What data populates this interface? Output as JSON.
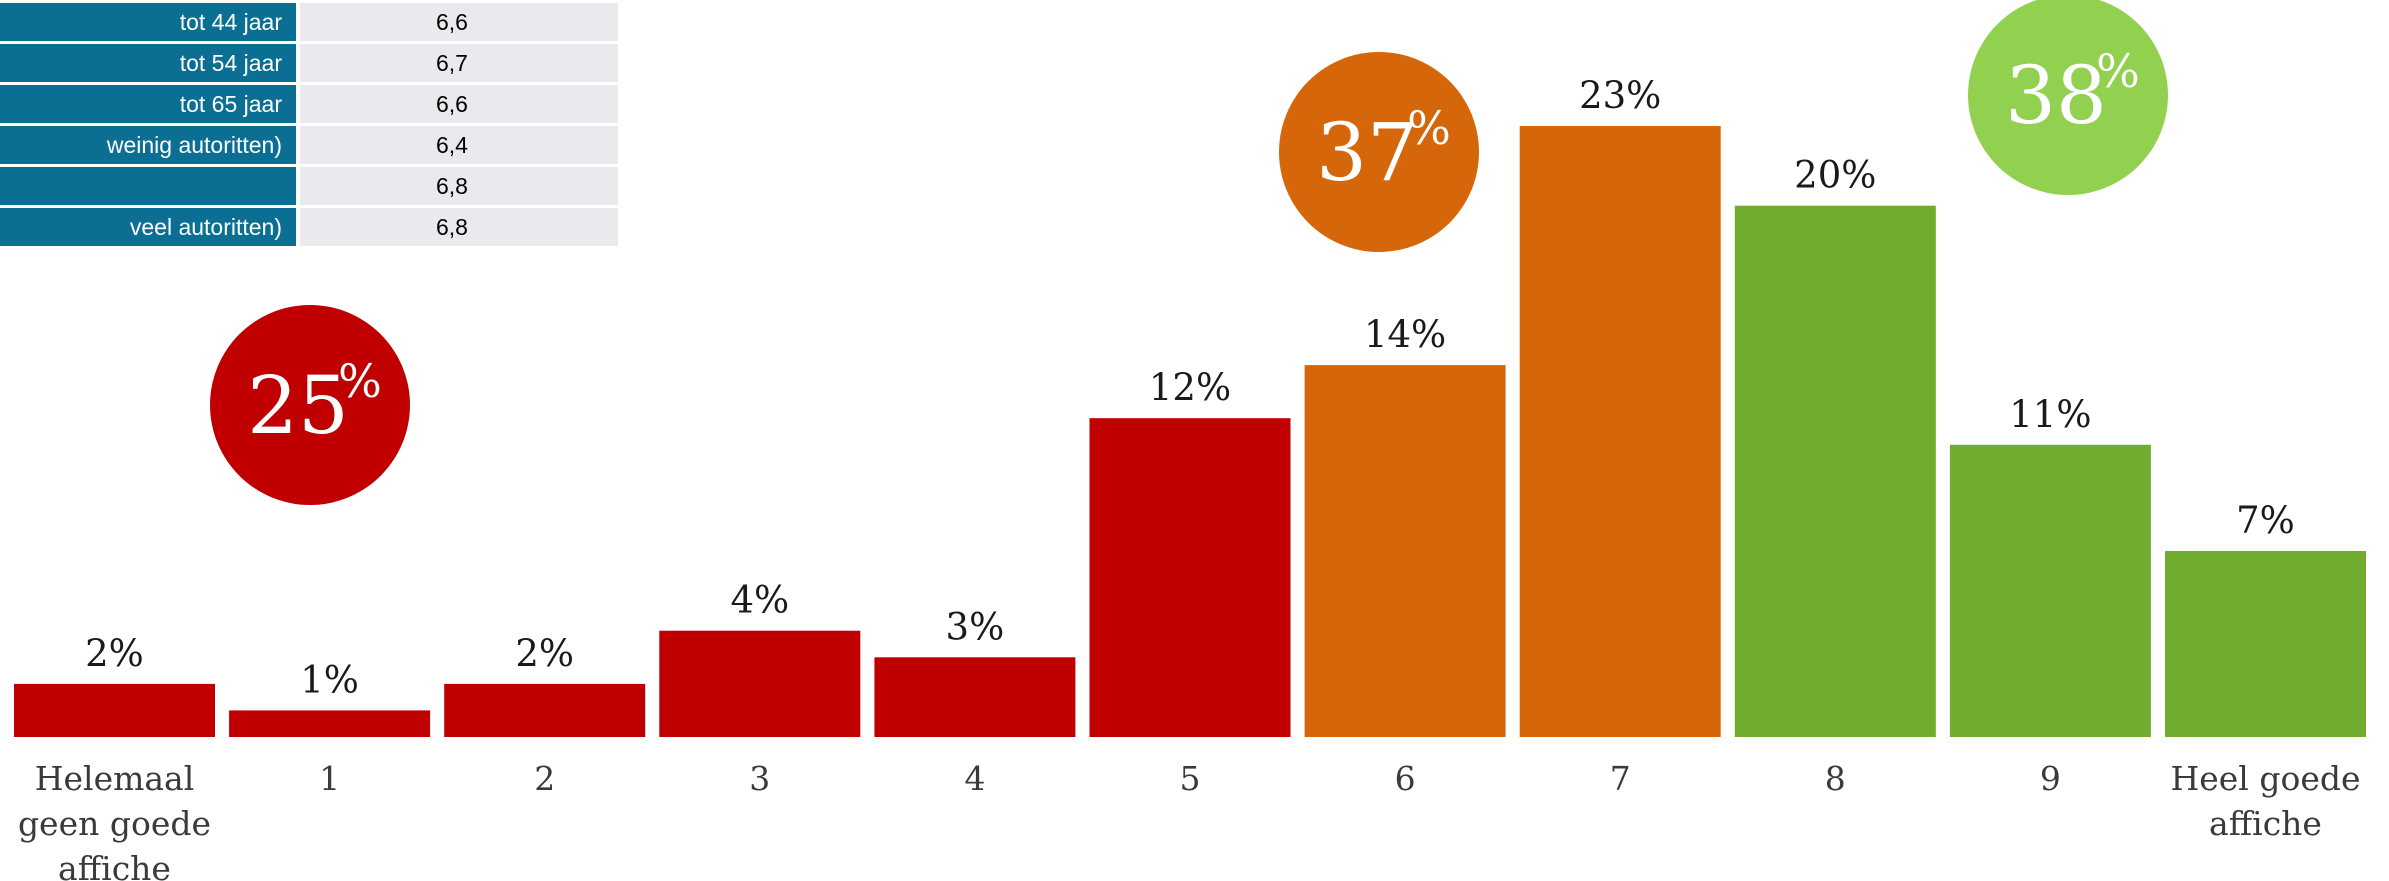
{
  "table": {
    "rows": [
      {
        "label": "tot 44 jaar",
        "value": "6,6"
      },
      {
        "label": "tot 54 jaar",
        "value": "6,7"
      },
      {
        "label": "tot 65 jaar",
        "value": "6,6"
      },
      {
        "label": "weinig autoritten)",
        "value": "6,4"
      },
      {
        "label": "",
        "value": "6,8"
      },
      {
        "label": "veel autoritten)",
        "value": "6,8"
      }
    ]
  },
  "chart_data": {
    "type": "bar",
    "categories": [
      [
        "Helemaal",
        "geen goede",
        "affiche"
      ],
      [
        "1"
      ],
      [
        "2"
      ],
      [
        "3"
      ],
      [
        "4"
      ],
      [
        "5"
      ],
      [
        "6"
      ],
      [
        "7"
      ],
      [
        "8"
      ],
      [
        "9"
      ],
      [
        "Heel goede",
        "affiche"
      ]
    ],
    "values": [
      2,
      1,
      2,
      4,
      3,
      12,
      14,
      23,
      20,
      11,
      7
    ],
    "value_labels": [
      "2%",
      "1%",
      "2%",
      "4%",
      "3%",
      "12%",
      "14%",
      "23%",
      "20%",
      "11%",
      "7%"
    ],
    "bar_colors": [
      "#c00000",
      "#c00000",
      "#c00000",
      "#c00000",
      "#c00000",
      "#c00000",
      "#d5660a",
      "#d5660a",
      "#70ad2f",
      "#70ad2f",
      "#70ad2f"
    ],
    "ylim": [
      0,
      23
    ],
    "groups": [
      {
        "number": "25",
        "unit": "%",
        "color": "#c00000",
        "covers": "Helemaal geen goede affiche – 5"
      },
      {
        "number": "37",
        "unit": "%",
        "color": "#d5660a",
        "covers": "6 – 7"
      },
      {
        "number": "38",
        "unit": "%",
        "color": "#92d050",
        "covers": "8 – Heel goede affiche"
      }
    ]
  }
}
